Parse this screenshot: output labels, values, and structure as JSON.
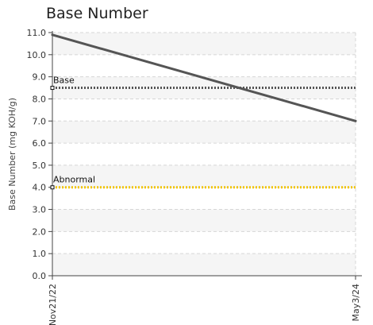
{
  "chart_data": {
    "type": "line",
    "title": "Base Number",
    "ylabel": "Base Number (mg KOH/g)",
    "xlabel": "",
    "x": [
      "Nov21/22",
      "May3/24"
    ],
    "ylim": [
      0.0,
      11.0
    ],
    "yticks": [
      "0.0",
      "1.0",
      "2.0",
      "3.0",
      "4.0",
      "5.0",
      "6.0",
      "7.0",
      "8.0",
      "9.0",
      "10.0",
      "11.0"
    ],
    "grid": true,
    "series": [
      {
        "values": [
          10.9,
          7.0
        ],
        "color": "#555555"
      }
    ],
    "reference_lines": [
      {
        "name": "Base",
        "value": 8.5,
        "color": "#555555",
        "style": "dotted"
      },
      {
        "name": "Abnormal",
        "value": 4.0,
        "color": "#f2c500",
        "style": "dotted"
      }
    ]
  }
}
